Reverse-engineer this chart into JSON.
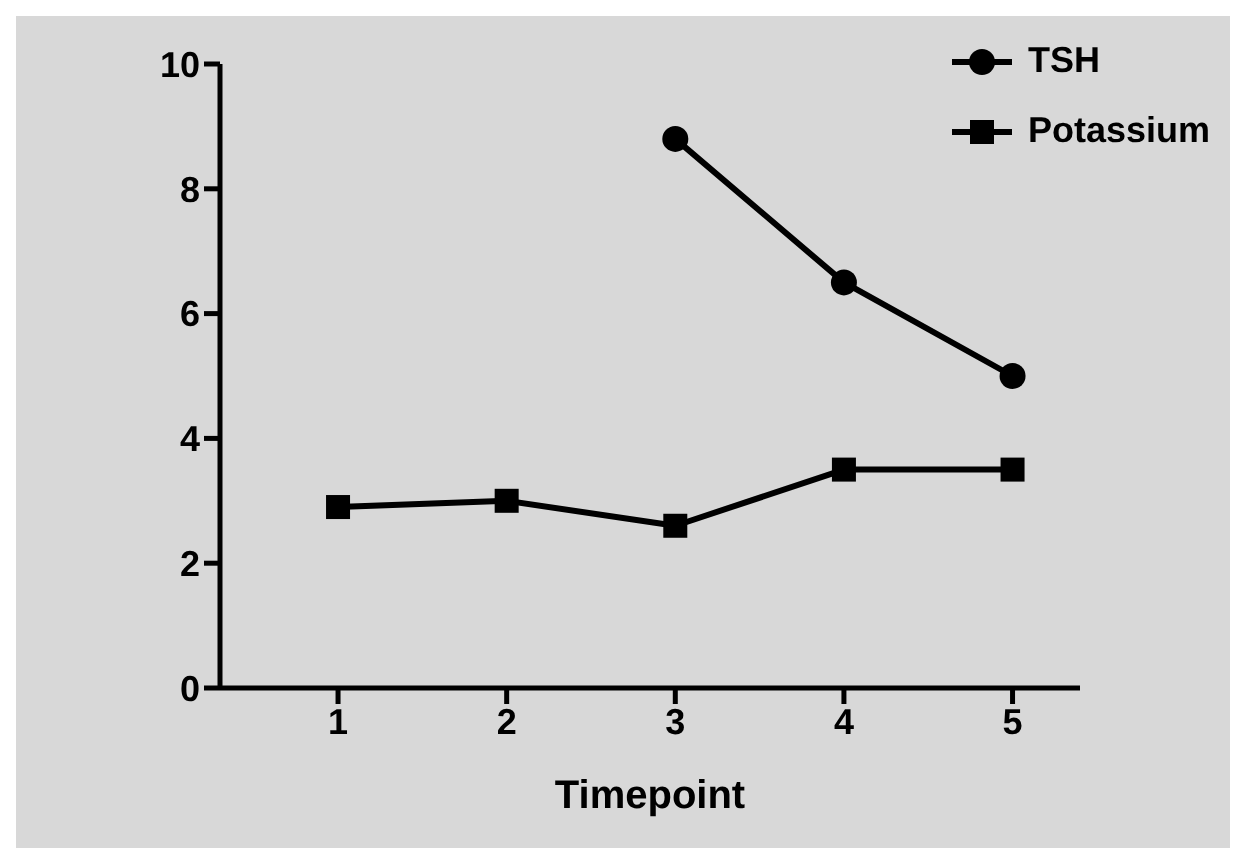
{
  "chart_data": {
    "type": "line",
    "xlabel": "Timepoint",
    "x": [
      1,
      2,
      3,
      4,
      5
    ],
    "series": [
      {
        "name": "TSH",
        "color": "#000000",
        "marker": "circle",
        "values": [
          null,
          null,
          8.8,
          6.5,
          5.0
        ]
      },
      {
        "name": "Potassium",
        "color": "#000000",
        "marker": "square",
        "values": [
          2.9,
          3.0,
          2.6,
          3.5,
          3.5
        ]
      }
    ],
    "xlim": [
      0.3,
      5.4
    ],
    "xticks": [
      1,
      2,
      3,
      4,
      5
    ],
    "ylim": [
      0,
      10
    ],
    "yticks": [
      0,
      2,
      4,
      6,
      8,
      10
    ],
    "grid": false,
    "legend": "top right"
  }
}
